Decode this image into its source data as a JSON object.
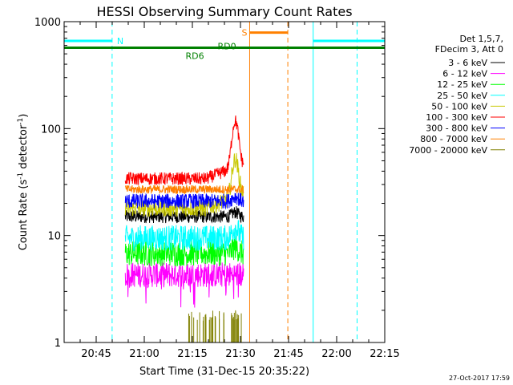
{
  "chart_data": {
    "type": "line",
    "title": "HESSI Observing Summary Count Rates",
    "xlabel": "Start Time (31-Dec-15 20:35:22)",
    "ylabel_main": "Count Rate (s",
    "ylabel_sup1": "-1",
    "ylabel_mid": " detector",
    "ylabel_sup2": "-1",
    "ylabel_end": ")",
    "y_scale": "log",
    "ylim": [
      1,
      1000
    ],
    "xlim_minutes": [
      -0.37,
      99.63
    ],
    "x_ticks": [
      {
        "label": "20:45",
        "m": 9.63
      },
      {
        "label": "21:00",
        "m": 24.63
      },
      {
        "label": "21:15",
        "m": 39.63
      },
      {
        "label": "21:30",
        "m": 54.63
      },
      {
        "label": "21:45",
        "m": 69.63
      },
      {
        "label": "22:00",
        "m": 84.63
      },
      {
        "label": "22:15",
        "m": 99.63
      }
    ],
    "y_ticks": [
      {
        "label": "1",
        "v": 1
      },
      {
        "label": "10",
        "v": 10
      },
      {
        "label": "100",
        "v": 100
      },
      {
        "label": "1000",
        "v": 1000
      }
    ],
    "legend_header": [
      "Det 1,5,7,",
      "FDecim 3, Att 0"
    ],
    "legend_position": "right",
    "series": [
      {
        "name": "3 - 6 keV",
        "color": "#000000",
        "base": 15,
        "noise": 0.06,
        "peak": 1.1
      },
      {
        "name": "6 - 12 keV",
        "color": "#ff00ff",
        "base": 4.3,
        "noise": 0.12,
        "peak": 1.0
      },
      {
        "name": "12 - 25 keV",
        "color": "#00ff00",
        "base": 6.8,
        "noise": 0.12,
        "peak": 1.15
      },
      {
        "name": "25 - 50 keV",
        "color": "#00ffff",
        "base": 9.5,
        "noise": 0.12,
        "peak": 1.25
      },
      {
        "name": "50 - 100 keV",
        "color": "#c8c800",
        "base": 18,
        "noise": 0.08,
        "peak": 2.6
      },
      {
        "name": "100 - 300 keV",
        "color": "#ff0000",
        "base": 34,
        "noise": 0.06,
        "peak": 3.2
      },
      {
        "name": "300 - 800 keV",
        "color": "#0000ff",
        "base": 21,
        "noise": 0.07,
        "peak": 1.1
      },
      {
        "name": "800 - 7000 keV",
        "color": "#ff8000",
        "base": 27,
        "noise": 0.04,
        "peak": 1.0
      },
      {
        "name": "7000 - 20000 keV",
        "color": "#808000",
        "base": 1,
        "noise": 0,
        "peak": 1.0
      }
    ],
    "data_interval_minutes": [
      18.7,
      55.6
    ],
    "flag_bars": [
      {
        "label": "N",
        "color": "#00ffff",
        "value": 660,
        "segments": [
          [
            -0.37,
            14.6
          ],
          [
            77.3,
            99.63
          ]
        ]
      },
      {
        "label": "S",
        "color": "#ff8000",
        "value": 790,
        "segments": [
          [
            57.5,
            69.4
          ]
        ]
      },
      {
        "label": "",
        "color": "#008000",
        "value": 570,
        "segments": [
          [
            -0.37,
            99.63
          ]
        ]
      }
    ],
    "flag_labels": [
      {
        "text": "RD0",
        "color": "#008000",
        "m": 47.5,
        "v": 590
      },
      {
        "text": "RD6",
        "color": "#008000",
        "m": 37.5,
        "v": 480
      }
    ],
    "vertical_markers": [
      {
        "m": -0.37,
        "color": "#00ffff",
        "dash": false
      },
      {
        "m": 14.6,
        "color": "#00ffff",
        "dash": true
      },
      {
        "m": 57.5,
        "color": "#ff8000",
        "dash": false
      },
      {
        "m": 69.4,
        "color": "#ff8000",
        "dash": true
      },
      {
        "m": 77.3,
        "color": "#00ffff",
        "dash": false
      },
      {
        "m": 91.0,
        "color": "#00ffff",
        "dash": true
      }
    ],
    "footer_timestamp": "27-Oct-2017 17:59"
  }
}
